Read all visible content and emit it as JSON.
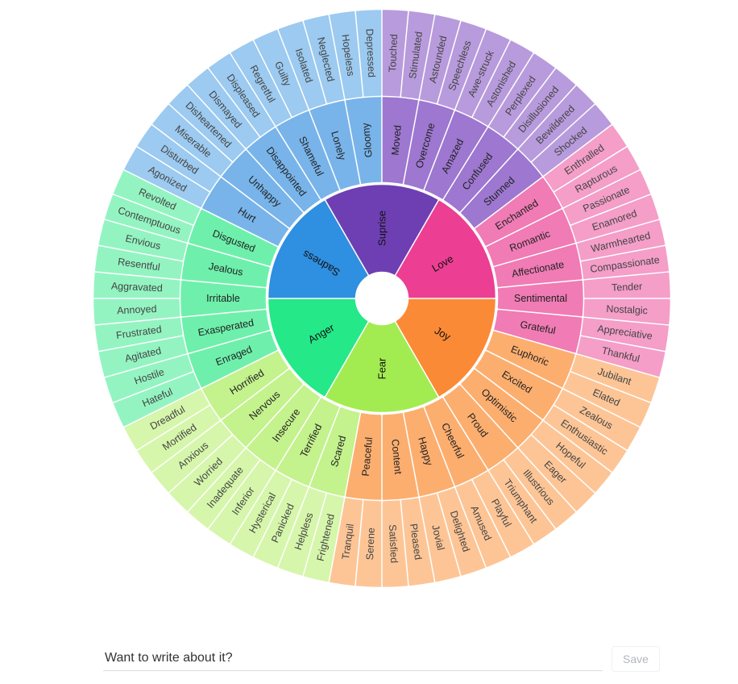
{
  "wheel": {
    "core": [
      {
        "label": "Sadness",
        "color": "#2f8fe0"
      },
      {
        "label": "Suprise",
        "color": "#6e3fb3"
      },
      {
        "label": "Love",
        "color": "#ec3f93"
      },
      {
        "label": "Joy",
        "color": "#fb8a36"
      },
      {
        "label": "Fear",
        "color": "#a2ec52"
      },
      {
        "label": "Anger",
        "color": "#25e888"
      }
    ],
    "middle": [
      {
        "label": "Gloomy",
        "color": "#78b4ea"
      },
      {
        "label": "Moved",
        "color": "#9d77d0"
      },
      {
        "label": "Overcome",
        "color": "#9d77d0"
      },
      {
        "label": "Amazed",
        "color": "#9d77d0"
      },
      {
        "label": "Confused",
        "color": "#9d77d0"
      },
      {
        "label": "Stunned",
        "color": "#9d77d0"
      },
      {
        "label": "Enchanted",
        "color": "#f07bb5"
      },
      {
        "label": "Romantic",
        "color": "#f07bb5"
      },
      {
        "label": "Affectionate",
        "color": "#f07bb5"
      },
      {
        "label": "Sentimental",
        "color": "#f07bb5"
      },
      {
        "label": "Grateful",
        "color": "#f07bb5"
      },
      {
        "label": "Euphoric",
        "color": "#fcae6f"
      },
      {
        "label": "Excited",
        "color": "#fcae6f"
      },
      {
        "label": "Optimistic",
        "color": "#fcae6f"
      },
      {
        "label": "Proud",
        "color": "#fcae6f"
      },
      {
        "label": "Cheerful",
        "color": "#fcae6f"
      },
      {
        "label": "Happy",
        "color": "#fcae6f"
      },
      {
        "label": "Content",
        "color": "#fcae6f"
      },
      {
        "label": "Peaceful",
        "color": "#fcae6f"
      },
      {
        "label": "Scared",
        "color": "#c4f28d"
      },
      {
        "label": "Terrified",
        "color": "#c4f28d"
      },
      {
        "label": "Insecure",
        "color": "#c4f28d"
      },
      {
        "label": "Nervous",
        "color": "#c4f28d"
      },
      {
        "label": "Horrified",
        "color": "#c4f28d"
      },
      {
        "label": "Enraged",
        "color": "#6ef0ac"
      },
      {
        "label": "Exasperated",
        "color": "#6ef0ac"
      },
      {
        "label": "Irritable",
        "color": "#6ef0ac"
      },
      {
        "label": "Jealous",
        "color": "#6ef0ac"
      },
      {
        "label": "Disgusted",
        "color": "#6ef0ac"
      },
      {
        "label": "Hurt",
        "color": "#78b4ea"
      },
      {
        "label": "Unhappy",
        "color": "#78b4ea"
      },
      {
        "label": "Disappointed",
        "color": "#78b4ea"
      },
      {
        "label": "Shameful",
        "color": "#78b4ea"
      },
      {
        "label": "Lonely",
        "color": "#78b4ea"
      }
    ],
    "outer": [
      {
        "label": "Touched",
        "color": "#b89bdc"
      },
      {
        "label": "Stimulated",
        "color": "#b89bdc"
      },
      {
        "label": "Astounded",
        "color": "#b89bdc"
      },
      {
        "label": "Speechless",
        "color": "#b89bdc"
      },
      {
        "label": "Awe-struck",
        "color": "#b89bdc"
      },
      {
        "label": "Astonished",
        "color": "#b89bdc"
      },
      {
        "label": "Perplexed",
        "color": "#b89bdc"
      },
      {
        "label": "Disillusioned",
        "color": "#b89bdc"
      },
      {
        "label": "Bewildered",
        "color": "#b89bdc"
      },
      {
        "label": "Shocked",
        "color": "#b89bdc"
      },
      {
        "label": "Enthralled",
        "color": "#f49ec8"
      },
      {
        "label": "Rapturous",
        "color": "#f49ec8"
      },
      {
        "label": "Passionate",
        "color": "#f49ec8"
      },
      {
        "label": "Enamored",
        "color": "#f49ec8"
      },
      {
        "label": "Warmhearted",
        "color": "#f49ec8"
      },
      {
        "label": "Compassionate",
        "color": "#f49ec8"
      },
      {
        "label": "Tender",
        "color": "#f49ec8"
      },
      {
        "label": "Nostalgic",
        "color": "#f49ec8"
      },
      {
        "label": "Appreciative",
        "color": "#f49ec8"
      },
      {
        "label": "Thankful",
        "color": "#f49ec8"
      },
      {
        "label": "Jubilant",
        "color": "#fdc596"
      },
      {
        "label": "Elated",
        "color": "#fdc596"
      },
      {
        "label": "Zealous",
        "color": "#fdc596"
      },
      {
        "label": "Enthusiastic",
        "color": "#fdc596"
      },
      {
        "label": "Hopeful",
        "color": "#fdc596"
      },
      {
        "label": "Eager",
        "color": "#fdc596"
      },
      {
        "label": "Illustrious",
        "color": "#fdc596"
      },
      {
        "label": "Triumphant",
        "color": "#fdc596"
      },
      {
        "label": "Playful",
        "color": "#fdc596"
      },
      {
        "label": "Amused",
        "color": "#fdc596"
      },
      {
        "label": "Delighted",
        "color": "#fdc596"
      },
      {
        "label": "Jovial",
        "color": "#fdc596"
      },
      {
        "label": "Pleased",
        "color": "#fdc596"
      },
      {
        "label": "Satisfied",
        "color": "#fdc596"
      },
      {
        "label": "Serene",
        "color": "#fdc596"
      },
      {
        "label": "Tranquil",
        "color": "#fdc596"
      },
      {
        "label": "Frightened",
        "color": "#d6f6ab"
      },
      {
        "label": "Helpless",
        "color": "#d6f6ab"
      },
      {
        "label": "Panicked",
        "color": "#d6f6ab"
      },
      {
        "label": "Hysterical",
        "color": "#d6f6ab"
      },
      {
        "label": "Inferior",
        "color": "#d6f6ab"
      },
      {
        "label": "Inadequate",
        "color": "#d6f6ab"
      },
      {
        "label": "Worried",
        "color": "#d6f6ab"
      },
      {
        "label": "Anxious",
        "color": "#d6f6ab"
      },
      {
        "label": "Mortified",
        "color": "#d6f6ab"
      },
      {
        "label": "Dreadful",
        "color": "#d6f6ab"
      },
      {
        "label": "Hateful",
        "color": "#93f4c2"
      },
      {
        "label": "Hostile",
        "color": "#93f4c2"
      },
      {
        "label": "Agitated",
        "color": "#93f4c2"
      },
      {
        "label": "Frustrated",
        "color": "#93f4c2"
      },
      {
        "label": "Annoyed",
        "color": "#93f4c2"
      },
      {
        "label": "Aggravated",
        "color": "#93f4c2"
      },
      {
        "label": "Resentful",
        "color": "#93f4c2"
      },
      {
        "label": "Envious",
        "color": "#93f4c2"
      },
      {
        "label": "Contemptuous",
        "color": "#93f4c2"
      },
      {
        "label": "Revolted",
        "color": "#93f4c2"
      },
      {
        "label": "Agonized",
        "color": "#9ccaf0"
      },
      {
        "label": "Disturbed",
        "color": "#9ccaf0"
      },
      {
        "label": "Miserable",
        "color": "#9ccaf0"
      },
      {
        "label": "Disheartened",
        "color": "#9ccaf0"
      },
      {
        "label": "Dismayed",
        "color": "#9ccaf0"
      },
      {
        "label": "Displeased",
        "color": "#9ccaf0"
      },
      {
        "label": "Regretful",
        "color": "#9ccaf0"
      },
      {
        "label": "Guilty",
        "color": "#9ccaf0"
      },
      {
        "label": "Isolated",
        "color": "#9ccaf0"
      },
      {
        "label": "Neglected",
        "color": "#9ccaf0"
      },
      {
        "label": "Hopeless",
        "color": "#9ccaf0"
      },
      {
        "label": "Depressed",
        "color": "#9ccaf0"
      }
    ]
  },
  "composer": {
    "placeholder": "Want to write about it?",
    "save_label": "Save"
  }
}
